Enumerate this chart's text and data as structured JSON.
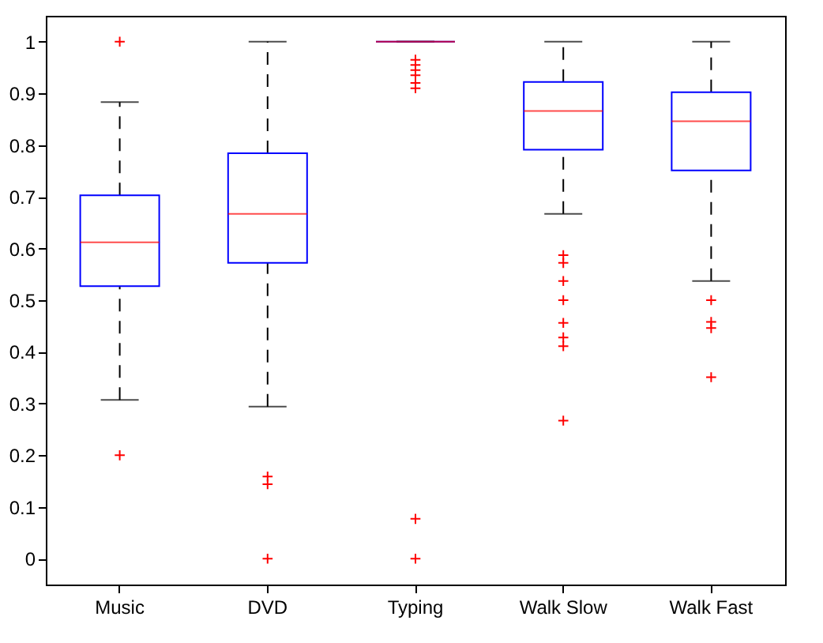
{
  "chart_data": {
    "type": "box",
    "categories": [
      "Music",
      "DVD",
      "Typing",
      "Walk Slow",
      "Walk Fast"
    ],
    "boxes": [
      {
        "low": 0.307,
        "q1": 0.527,
        "median": 0.612,
        "q3": 0.703,
        "high": 0.883,
        "outliers": [
          1.0,
          0.2
        ]
      },
      {
        "low": 0.294,
        "q1": 0.572,
        "median": 0.667,
        "q3": 0.784,
        "high": 1.0,
        "outliers": [
          0.159,
          0.144,
          0.0
        ]
      },
      {
        "low": 1.0,
        "q1": 1.0,
        "median": 1.0,
        "q3": 1.0,
        "high": 1.0,
        "outliers": [
          0.965,
          0.955,
          0.945,
          0.935,
          0.92,
          0.91,
          0.077,
          0.0
        ]
      },
      {
        "low": 0.667,
        "q1": 0.791,
        "median": 0.866,
        "q3": 0.922,
        "high": 1.0,
        "outliers": [
          0.587,
          0.572,
          0.537,
          0.5,
          0.456,
          0.428,
          0.411,
          0.267
        ]
      },
      {
        "low": 0.537,
        "q1": 0.751,
        "median": 0.846,
        "q3": 0.902,
        "high": 1.0,
        "outliers": [
          0.5,
          0.458,
          0.446,
          0.351
        ]
      }
    ],
    "ylim": [
      -0.05,
      1.05
    ],
    "yticks": [
      0,
      0.1,
      0.2,
      0.3,
      0.4,
      0.5,
      0.6,
      0.7,
      0.8,
      0.9,
      1
    ],
    "grid": false,
    "marker": "cross"
  }
}
